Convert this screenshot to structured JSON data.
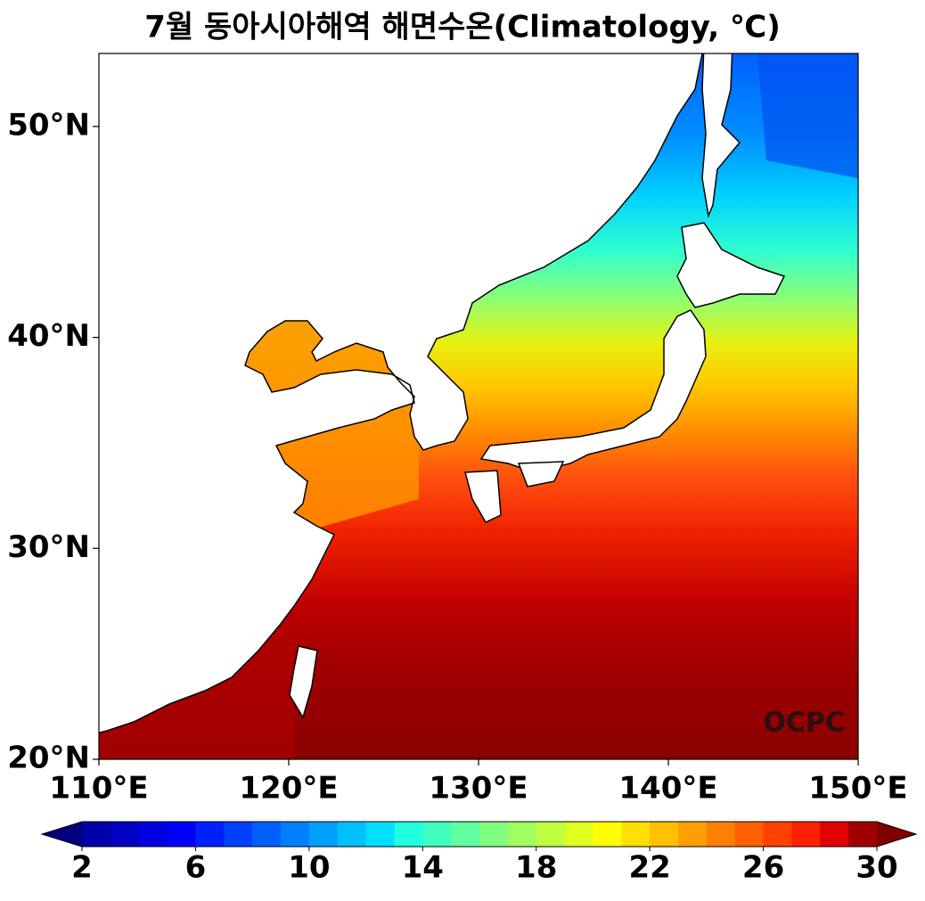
{
  "title": "7월 동아시아해역 해면수온(Climatology, ℃)",
  "map": {
    "xlim": [
      110,
      150
    ],
    "ylim": [
      20,
      53.46
    ],
    "xticks": [
      {
        "value": 110,
        "label": "110°E"
      },
      {
        "value": 120,
        "label": "120°E"
      },
      {
        "value": 130,
        "label": "130°E"
      },
      {
        "value": 140,
        "label": "140°E"
      },
      {
        "value": 150,
        "label": "150°E"
      }
    ],
    "yticks": [
      {
        "value": 20,
        "label": "20°N"
      },
      {
        "value": 30,
        "label": "30°N"
      },
      {
        "value": 40,
        "label": "40°N"
      },
      {
        "value": 50,
        "label": "50°N"
      }
    ],
    "watermark": "OCPC"
  },
  "colorbar": {
    "lim": [
      2,
      30
    ],
    "ticks": [
      2,
      6,
      10,
      14,
      18,
      22,
      26,
      30
    ],
    "colors": [
      "#0000a8",
      "#0000c4",
      "#0000e0",
      "#0000ff",
      "#0020ff",
      "#0040ff",
      "#0060ff",
      "#0080ff",
      "#00a0ff",
      "#00c0ff",
      "#00e0ff",
      "#20ffdf",
      "#40ffbf",
      "#60ff9f",
      "#80ff80",
      "#9fff60",
      "#bfff40",
      "#dfff20",
      "#ffff00",
      "#ffe000",
      "#ffc000",
      "#ffa000",
      "#ff8000",
      "#ff6000",
      "#ff4000",
      "#ff2000",
      "#e00000",
      "#a00000"
    ],
    "under_color": "#000080",
    "over_color": "#800000"
  }
}
